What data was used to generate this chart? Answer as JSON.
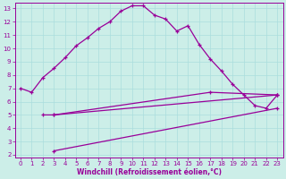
{
  "xlabel": "Windchill (Refroidissement éolien,°C)",
  "bg_color": "#cceee8",
  "line_color": "#990099",
  "xlim": [
    0,
    23
  ],
  "ylim": [
    2,
    13
  ],
  "xticks": [
    0,
    1,
    2,
    3,
    4,
    5,
    6,
    7,
    8,
    9,
    10,
    11,
    12,
    13,
    14,
    15,
    16,
    17,
    18,
    19,
    20,
    21,
    22,
    23
  ],
  "yticks": [
    2,
    3,
    4,
    5,
    6,
    7,
    8,
    9,
    10,
    11,
    12,
    13
  ],
  "line1_x": [
    0,
    1,
    2,
    3,
    4,
    5,
    6,
    7,
    8,
    9,
    10,
    11,
    12,
    13,
    14,
    15,
    16,
    17,
    18,
    19,
    20,
    21,
    22,
    23
  ],
  "line1_y": [
    7.0,
    6.7,
    7.8,
    8.5,
    9.3,
    10.2,
    10.8,
    11.5,
    12.0,
    12.8,
    13.2,
    13.2,
    12.5,
    12.2,
    11.3,
    11.7,
    10.3,
    9.2,
    8.3,
    7.3,
    6.5,
    5.7,
    5.5,
    6.5
  ],
  "line2_x": [
    2,
    3,
    23
  ],
  "line2_y": [
    5.0,
    5.0,
    6.5
  ],
  "line3_x": [
    3,
    23
  ],
  "line3_y": [
    2.3,
    5.5
  ],
  "line4_x": [
    3,
    17,
    23
  ],
  "line4_y": [
    5.0,
    6.7,
    6.5
  ],
  "grid_color": "#aadddd",
  "tick_fontsize": 5,
  "xlabel_fontsize": 5.5
}
